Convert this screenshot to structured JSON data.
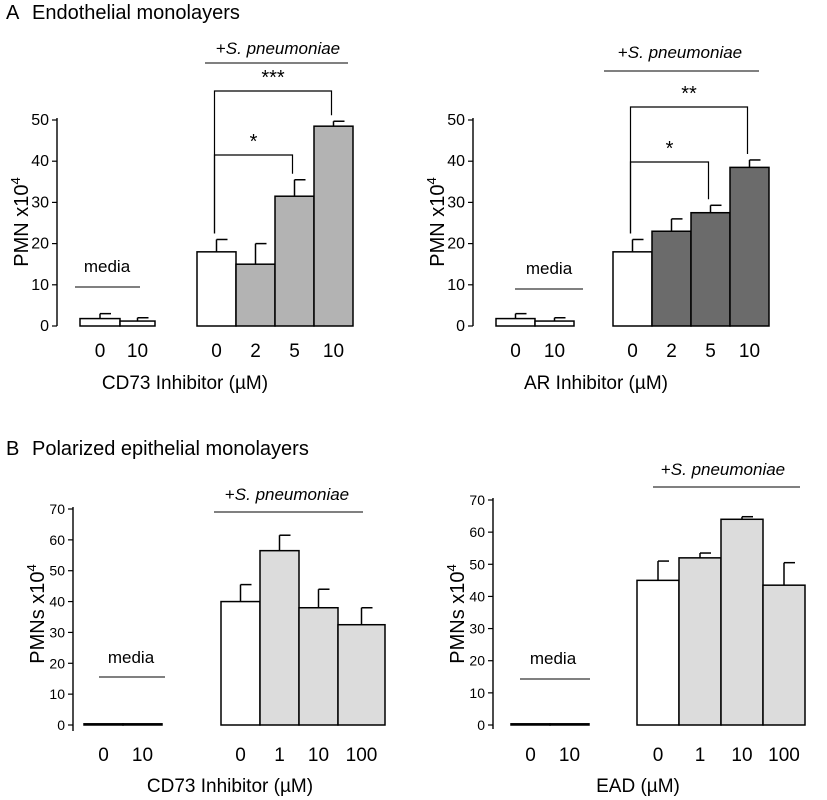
{
  "panel_labels": {
    "A": "A",
    "A_title": "Endothelial monolayers",
    "B": "B",
    "B_title": "Polarized epithelial monolayers"
  },
  "chart_data": [
    {
      "type": "bar",
      "panel": "A",
      "ylabel_main": "PMN x10",
      "ylabel_sup": "4",
      "xlabel": "CD73 Inhibitor (µM)",
      "ylim": [
        0,
        50
      ],
      "yticks": [
        0,
        10,
        20,
        30,
        40,
        50
      ],
      "categories": [
        "0",
        "10",
        "0",
        "2",
        "5",
        "10"
      ],
      "values": [
        1.8,
        1.2,
        18,
        15,
        31.5,
        48.5
      ],
      "errors": [
        1.2,
        0.8,
        3,
        5,
        4,
        1.2
      ],
      "colors": [
        "#ffffff",
        "#ffffff",
        "#ffffff",
        "#b3b3b3",
        "#b3b3b3",
        "#b3b3b3"
      ],
      "group_labels": [
        {
          "text": "media",
          "italic": ""
        },
        {
          "text": "+",
          "italic": "S. pneumoniae"
        }
      ],
      "significance": [
        {
          "from": 2,
          "to": 4,
          "label": "*"
        },
        {
          "from": 2,
          "to": 5,
          "label": "***"
        }
      ]
    },
    {
      "type": "bar",
      "panel": "A",
      "ylabel_main": "PMN x10",
      "ylabel_sup": "4",
      "xlabel": "AR Inhibitor (µM)",
      "ylim": [
        0,
        50
      ],
      "yticks": [
        0,
        10,
        20,
        30,
        40,
        50
      ],
      "categories": [
        "0",
        "10",
        "0",
        "2",
        "5",
        "10"
      ],
      "values": [
        1.8,
        1.2,
        18,
        23,
        27.5,
        38.5
      ],
      "errors": [
        1.2,
        0.8,
        3,
        3,
        1.8,
        1.8
      ],
      "colors": [
        "#ffffff",
        "#ffffff",
        "#ffffff",
        "#6b6b6b",
        "#6b6b6b",
        "#6b6b6b"
      ],
      "group_labels": [
        {
          "text": "media",
          "italic": ""
        },
        {
          "text": "+",
          "italic": "S. pneumoniae"
        }
      ],
      "significance": [
        {
          "from": 2,
          "to": 4,
          "label": "*"
        },
        {
          "from": 2,
          "to": 5,
          "label": "**"
        }
      ]
    },
    {
      "type": "bar",
      "panel": "B",
      "ylabel_main": "PMNs x10",
      "ylabel_sup": "4",
      "xlabel": "CD73 Inhibitor (µM)",
      "ylim": [
        0,
        70
      ],
      "yticks": [
        0,
        10,
        20,
        30,
        40,
        50,
        60,
        70
      ],
      "categories": [
        "0",
        "10",
        "0",
        "1",
        "10",
        "100"
      ],
      "values": [
        0.3,
        0.3,
        40,
        56.5,
        38,
        32.5
      ],
      "errors": [
        0,
        0,
        5.5,
        5,
        6,
        5.5
      ],
      "colors": [
        "#ffffff",
        "#ffffff",
        "#ffffff",
        "#dcdcdc",
        "#dcdcdc",
        "#dcdcdc"
      ],
      "group_labels": [
        {
          "text": "media",
          "italic": ""
        },
        {
          "text": "+",
          "italic": "S. pneumoniae"
        }
      ],
      "significance": []
    },
    {
      "type": "bar",
      "panel": "B",
      "ylabel_main": "PMNs x10",
      "ylabel_sup": "4",
      "xlabel": "EAD (µM)",
      "ylim": [
        0,
        70
      ],
      "yticks": [
        0,
        10,
        20,
        30,
        40,
        50,
        60,
        70
      ],
      "categories": [
        "0",
        "10",
        "0",
        "1",
        "10",
        "100"
      ],
      "values": [
        0.3,
        0.3,
        45,
        52,
        64,
        43.5
      ],
      "errors": [
        0,
        0,
        6,
        1.5,
        0.8,
        7
      ],
      "colors": [
        "#ffffff",
        "#ffffff",
        "#ffffff",
        "#dcdcdc",
        "#dcdcdc",
        "#dcdcdc"
      ],
      "group_labels": [
        {
          "text": "media",
          "italic": ""
        },
        {
          "text": "+",
          "italic": "S. pneumoniae"
        }
      ],
      "significance": []
    }
  ]
}
